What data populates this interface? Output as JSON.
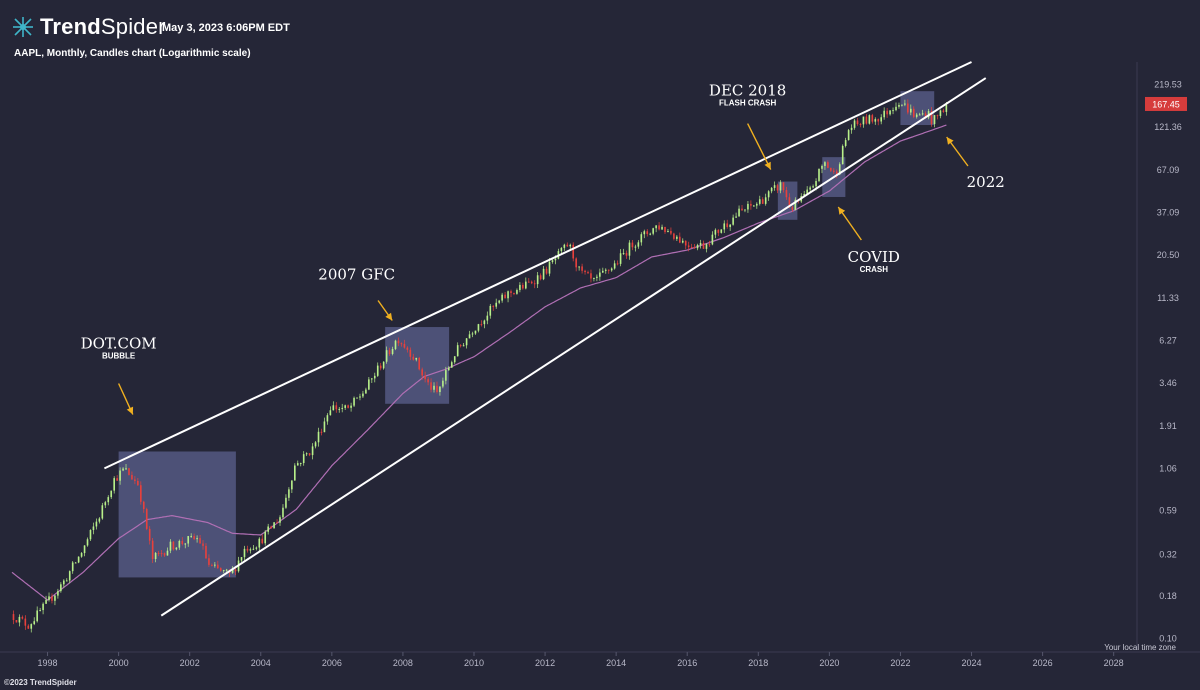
{
  "header": {
    "brand_bold": "Trend",
    "brand_light": "Spider",
    "timestamp": "May 3, 2023 6:06PM EDT",
    "symbol_line": "AAPL, Monthly, Candles chart (Logarithmic scale)"
  },
  "footer": {
    "copyright": "©2023 TrendSpider",
    "timezone": "Your local time zone"
  },
  "colors": {
    "background": "#252637",
    "up": "#b8f08a",
    "down": "#e8413c",
    "sma": "#b06fb4",
    "highlight": "#5d6290",
    "annotation": "#f0b020",
    "trendline": "#ffffff",
    "price_tag": "#d63c3c"
  },
  "chart_data": {
    "type": "candlestick",
    "scale": "log",
    "interval": "monthly",
    "ylim": [
      0.085,
      300
    ],
    "xlim": [
      1997.0,
      2028.6
    ],
    "last_price": "167.45",
    "y_ticks": [
      "219.53",
      "121.36",
      "67.09",
      "37.09",
      "20.50",
      "11.33",
      "6.27",
      "3.46",
      "1.91",
      "1.06",
      "0.59",
      "0.32",
      "0.18",
      "0.10"
    ],
    "y_tick_values": [
      219.53,
      121.36,
      67.09,
      37.09,
      20.5,
      11.33,
      6.27,
      3.46,
      1.91,
      1.06,
      0.59,
      0.32,
      0.18,
      0.1
    ],
    "x_ticks": [
      "1998",
      "2000",
      "2002",
      "2004",
      "2006",
      "2008",
      "2010",
      "2012",
      "2014",
      "2016",
      "2018",
      "2020",
      "2022",
      "2024",
      "2026",
      "2028"
    ],
    "x_tick_values": [
      1998,
      2000,
      2002,
      2004,
      2006,
      2008,
      2010,
      2012,
      2014,
      2016,
      2018,
      2020,
      2022,
      2024,
      2026,
      2028
    ],
    "price_path": [
      [
        1997.0,
        0.14
      ],
      [
        1997.5,
        0.12
      ],
      [
        1998.0,
        0.16
      ],
      [
        1998.5,
        0.22
      ],
      [
        1999.0,
        0.33
      ],
      [
        1999.5,
        0.55
      ],
      [
        1999.9,
        0.9
      ],
      [
        2000.2,
        1.05
      ],
      [
        2000.6,
        0.85
      ],
      [
        2000.8,
        0.5
      ],
      [
        2001.0,
        0.3
      ],
      [
        2001.5,
        0.36
      ],
      [
        2002.0,
        0.39
      ],
      [
        2002.3,
        0.4
      ],
      [
        2002.6,
        0.27
      ],
      [
        2003.2,
        0.24
      ],
      [
        2003.6,
        0.35
      ],
      [
        2004.0,
        0.38
      ],
      [
        2004.6,
        0.55
      ],
      [
        2005.0,
        1.1
      ],
      [
        2005.5,
        1.4
      ],
      [
        2006.0,
        2.5
      ],
      [
        2006.5,
        2.4
      ],
      [
        2007.0,
        3.2
      ],
      [
        2007.5,
        4.8
      ],
      [
        2007.9,
        6.5
      ],
      [
        2008.3,
        5.2
      ],
      [
        2008.7,
        3.5
      ],
      [
        2009.0,
        3.0
      ],
      [
        2009.5,
        5.2
      ],
      [
        2010.0,
        7.3
      ],
      [
        2010.5,
        9.5
      ],
      [
        2011.0,
        12.0
      ],
      [
        2011.5,
        13.5
      ],
      [
        2012.0,
        16.0
      ],
      [
        2012.7,
        24.0
      ],
      [
        2013.0,
        16.5
      ],
      [
        2013.4,
        14.0
      ],
      [
        2014.0,
        18.0
      ],
      [
        2014.5,
        24.0
      ],
      [
        2015.2,
        31.0
      ],
      [
        2015.6,
        28.0
      ],
      [
        2016.0,
        24.0
      ],
      [
        2016.5,
        23.5
      ],
      [
        2017.0,
        30.0
      ],
      [
        2017.5,
        37.0
      ],
      [
        2018.0,
        42.0
      ],
      [
        2018.7,
        55.0
      ],
      [
        2018.95,
        39.0
      ],
      [
        2019.5,
        50.0
      ],
      [
        2019.9,
        75.0
      ],
      [
        2020.2,
        62.0
      ],
      [
        2020.6,
        120.0
      ],
      [
        2021.0,
        132.0
      ],
      [
        2021.5,
        140.0
      ],
      [
        2022.0,
        175.0
      ],
      [
        2022.5,
        140.0
      ],
      [
        2022.8,
        150.0
      ],
      [
        2022.95,
        130.0
      ],
      [
        2023.35,
        167.45
      ]
    ],
    "sma_path": [
      [
        1997.0,
        0.25
      ],
      [
        1998.0,
        0.17
      ],
      [
        1999.0,
        0.25
      ],
      [
        2000.0,
        0.4
      ],
      [
        2000.8,
        0.52
      ],
      [
        2001.5,
        0.55
      ],
      [
        2002.5,
        0.5
      ],
      [
        2003.2,
        0.43
      ],
      [
        2004.0,
        0.42
      ],
      [
        2005.0,
        0.6
      ],
      [
        2006.0,
        1.1
      ],
      [
        2007.0,
        1.8
      ],
      [
        2008.0,
        3.0
      ],
      [
        2008.6,
        3.8
      ],
      [
        2009.2,
        4.2
      ],
      [
        2010.0,
        5.0
      ],
      [
        2011.0,
        7.0
      ],
      [
        2012.0,
        10.0
      ],
      [
        2013.0,
        13.0
      ],
      [
        2014.0,
        15.0
      ],
      [
        2015.0,
        20.0
      ],
      [
        2016.0,
        22.0
      ],
      [
        2017.0,
        26.0
      ],
      [
        2018.0,
        32.0
      ],
      [
        2019.0,
        38.0
      ],
      [
        2020.0,
        50.0
      ],
      [
        2021.0,
        75.0
      ],
      [
        2022.0,
        100.0
      ],
      [
        2023.3,
        125.0
      ]
    ],
    "trendlines": [
      {
        "name": "upper",
        "x1": 1999.6,
        "y1": 1.06,
        "x2": 2024.0,
        "y2": 300.0
      },
      {
        "name": "lower",
        "x1": 2001.2,
        "y1": 0.137,
        "x2": 2024.4,
        "y2": 240.0
      }
    ],
    "highlights": [
      {
        "name": "dot-com-bubble",
        "x0": 2000.0,
        "x1": 2003.3,
        "y0": 0.233,
        "y1": 1.34
      },
      {
        "name": "gfc-2007",
        "x0": 2007.5,
        "x1": 2009.3,
        "y0": 2.6,
        "y1": 7.55
      },
      {
        "name": "dec-2018",
        "x0": 2018.55,
        "x1": 2019.1,
        "y0": 33.5,
        "y1": 57.0
      },
      {
        "name": "covid",
        "x0": 2019.8,
        "x1": 2020.45,
        "y0": 46.0,
        "y1": 80.0
      },
      {
        "name": "y2022",
        "x0": 2022.0,
        "x1": 2022.95,
        "y0": 125.0,
        "y1": 200.0
      }
    ],
    "annotations": [
      {
        "name": "dotcom",
        "title": "DOT.COM",
        "subtitle": "BUBBLE"
      },
      {
        "name": "gfc",
        "title": "2007 GFC",
        "subtitle": ""
      },
      {
        "name": "dec2018",
        "title": "DEC 2018",
        "subtitle": "FLASH CRASH"
      },
      {
        "name": "covid",
        "title": "COVID",
        "subtitle": "CRASH"
      },
      {
        "name": "y2022",
        "title": "2022",
        "subtitle": ""
      }
    ]
  }
}
